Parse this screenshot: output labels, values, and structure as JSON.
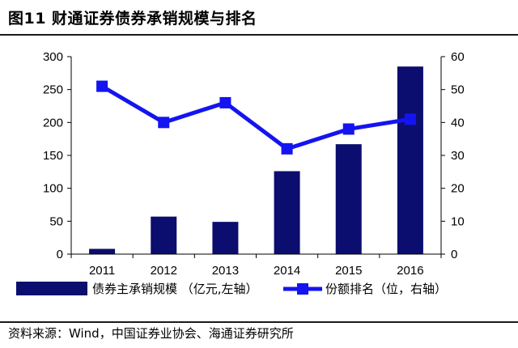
{
  "title": "图11 财通证券债券承销规模与排名",
  "source": "资料来源：Wind，中国证券业协会、海通证券研究所",
  "colors": {
    "bar": "#0b0e6e",
    "line": "#1414f0",
    "axis": "#000000"
  },
  "chart_data": {
    "type": "bar",
    "categories": [
      "2011",
      "2012",
      "2013",
      "2014",
      "2015",
      "2016"
    ],
    "series": [
      {
        "name": "债券主承销规模 （亿元,左轴）",
        "type": "bar",
        "axis": "left",
        "values": [
          8,
          57,
          49,
          126,
          167,
          285
        ]
      },
      {
        "name": "份额排名（位，右轴）",
        "type": "line",
        "axis": "right",
        "values": [
          51,
          40,
          46,
          32,
          38,
          41
        ]
      }
    ],
    "left_axis": {
      "min": 0,
      "max": 300,
      "ticks": [
        "0",
        "50",
        "100",
        "150",
        "200",
        "250",
        "300"
      ]
    },
    "right_axis": {
      "min": 0,
      "max": 60,
      "ticks": [
        "0",
        "10",
        "20",
        "30",
        "40",
        "50",
        "60"
      ]
    },
    "grid": false,
    "legend": "bottom"
  }
}
